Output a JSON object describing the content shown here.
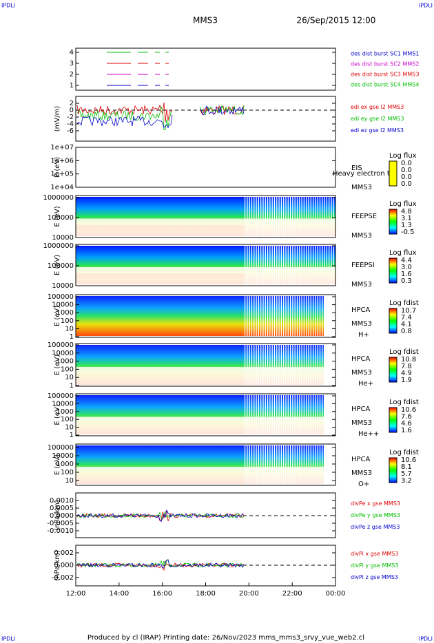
{
  "header": {
    "corner_left": "IPDLI",
    "corner_right": "IPDLI",
    "mission": "MMS3",
    "date": "26/Sep/2015 12:00"
  },
  "footer": {
    "corner_left": "IPDLI",
    "corner_right": "IPDLI",
    "text": "Produced by cl (IRAP)   Printing date: 26/Nov/2023   mms_mms3_srvy_vue_web2.cl"
  },
  "xaxis": {
    "ticks": [
      "12:00",
      "14:00",
      "16:00",
      "18:00",
      "20:00",
      "22:00",
      "00:00"
    ]
  },
  "panels": [
    {
      "yticks": [
        "4",
        "3",
        "2",
        "1"
      ],
      "right_labels": [
        {
          "text": "des dist burst SC1 MMS1",
          "color": "#0000cc"
        },
        {
          "text": "des dist burst SC2 MMS2",
          "color": "#cc00cc"
        },
        {
          "text": "des dist burst SC3 MMS3",
          "color": "#dd0000"
        },
        {
          "text": "des dist burst SC4 MMS4",
          "color": "#00bb00"
        }
      ]
    },
    {
      "ylabel": "(mV/m)",
      "yticks": [
        "2",
        "0",
        "-2",
        "-4",
        "-6"
      ],
      "right_labels": [
        {
          "text": "edi ex gse l2 MMS3",
          "color": "#dd0000"
        },
        {
          "text": "edi ey gse l2 MMS3",
          "color": "#00bb00"
        },
        {
          "text": "edi ez gse l2 MMS3",
          "color": "#0000cc"
        }
      ]
    },
    {
      "ylabel": "E (eV)",
      "yticks": [
        "1e+07",
        "1e+06",
        "1e+05",
        "1e+04"
      ],
      "instrument": [
        "EIS",
        "MMS3"
      ],
      "overlay": "Heavy electron to",
      "cbar_title": "Log flux",
      "cbar_ticks": [
        "0.0",
        "0.0",
        "0.0",
        "0.0"
      ]
    },
    {
      "ylabel": "E (eV)",
      "yticks": [
        "1000000",
        "100000",
        "10000"
      ],
      "instrument": [
        "FEEPSE",
        "MMS3"
      ],
      "cbar_title": "Log flux",
      "cbar_ticks": [
        "4.8",
        "3.1",
        "1.3",
        "-0.5"
      ]
    },
    {
      "ylabel": "E (eV)",
      "yticks": [
        "1000000",
        "100000",
        "10000"
      ],
      "instrument": [
        "FEEPSI",
        "MMS3"
      ],
      "cbar_title": "Log flux",
      "cbar_ticks": [
        "4.4",
        "3.0",
        "1.6",
        "0.3"
      ]
    },
    {
      "ylabel": "E (eV)",
      "yticks": [
        "100000",
        "10000",
        "1000",
        "100",
        "10",
        "1"
      ],
      "instrument": [
        "HPCA",
        "MMS3",
        "H+"
      ],
      "cbar_title": "Log fdist",
      "cbar_ticks": [
        "10.7",
        "7.4",
        "4.1",
        "0.8"
      ]
    },
    {
      "ylabel": "E (eV)",
      "yticks": [
        "100000",
        "10000",
        "1000",
        "100",
        "10",
        "1"
      ],
      "instrument": [
        "HPCA",
        "MMS3",
        "He+"
      ],
      "cbar_title": "Log fdist",
      "cbar_ticks": [
        "10.8",
        "7.8",
        "4.9",
        "1.9"
      ]
    },
    {
      "ylabel": "E (eV)",
      "yticks": [
        "100000",
        "10000",
        "1000",
        "100",
        "10",
        "1"
      ],
      "instrument": [
        "HPCA",
        "MMS3",
        "He++"
      ],
      "cbar_title": "Log fdist",
      "cbar_ticks": [
        "10.6",
        "7.6",
        "4.6",
        "1.6"
      ]
    },
    {
      "ylabel": "E (eV)",
      "yticks": [
        "100000",
        "10000",
        "1000",
        "100",
        "10"
      ],
      "instrument": [
        "HPCA",
        "MMS3",
        "O+"
      ],
      "cbar_title": "Log fdist",
      "cbar_ticks": [
        "10.6",
        "8.1",
        "5.7",
        "3.2"
      ]
    },
    {
      "ylabel": "(nPa/km)",
      "yticks": [
        "0.0010",
        "0.0005",
        "0.0000",
        "-0.0005",
        "-0.0010"
      ],
      "right_labels": [
        {
          "text": "divPe x gse MMS3",
          "color": "#dd0000"
        },
        {
          "text": "divPe y gse MMS3",
          "color": "#00bb00"
        },
        {
          "text": "divPe z gse MMS3",
          "color": "#0000cc"
        }
      ]
    },
    {
      "ylabel": "(nPa/km)",
      "yticks": [
        "0.002",
        "0.000",
        "-0.002"
      ],
      "right_labels": [
        {
          "text": "divPi x gse MMS3",
          "color": "#dd0000"
        },
        {
          "text": "divPi y gse MMS3",
          "color": "#00bb00"
        },
        {
          "text": "divPi z gse MMS3",
          "color": "#0000cc"
        }
      ]
    }
  ]
}
